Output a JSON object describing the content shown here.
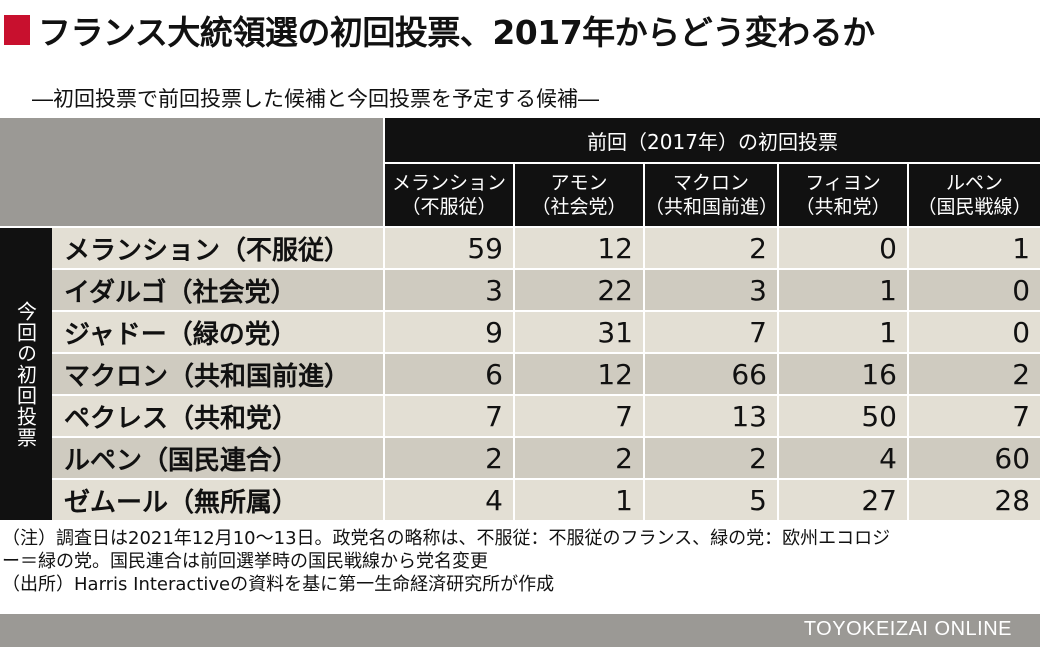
{
  "title": "フランス大統領選の初回投票、2017年からどう変わるか",
  "subtitle": "―初回投票で前回投票した候補と今回投票を予定する候補―",
  "chart_data": {
    "type": "table",
    "column_group_label": "前回（2017年）の初回投票",
    "row_group_label": "今回の初回投票",
    "columns": [
      {
        "line1": "メランション",
        "line2": "（不服従）"
      },
      {
        "line1": "アモン",
        "line2": "（社会党）"
      },
      {
        "line1": "マクロン",
        "line2": "（共和国前進）"
      },
      {
        "line1": "フィヨン",
        "line2": "（共和党）"
      },
      {
        "line1": "ルペン",
        "line2": "（国民戦線）"
      }
    ],
    "rows": [
      {
        "label": "メランション（不服従）",
        "values": [
          59,
          12,
          2,
          0,
          1
        ]
      },
      {
        "label": "イダルゴ（社会党）",
        "values": [
          3,
          22,
          3,
          1,
          0
        ]
      },
      {
        "label": "ジャドー（緑の党）",
        "values": [
          9,
          31,
          7,
          1,
          0
        ]
      },
      {
        "label": "マクロン（共和国前進）",
        "values": [
          6,
          12,
          66,
          16,
          2
        ]
      },
      {
        "label": "ペクレス（共和党）",
        "values": [
          7,
          7,
          13,
          50,
          7
        ]
      },
      {
        "label": "ルペン（国民連合）",
        "values": [
          2,
          2,
          2,
          4,
          60
        ]
      },
      {
        "label": "ゼムール（無所属）",
        "values": [
          4,
          1,
          5,
          27,
          28
        ]
      }
    ]
  },
  "notes": [
    "（注）調査日は2021年12月10～13日。政党名の略称は、不服従：不服従のフランス、緑の党：欧州エコロジ",
    "ー＝緑の党。国民連合は前回選挙時の国民戦線から党名変更",
    "（出所）Harris Interactiveの資料を基に第一生命経済研究所が作成"
  ],
  "footer": "TOYOKEIZAI ONLINE",
  "colors": {
    "accent": "#c8102e",
    "header_bg": "#111111",
    "row_light": "#e3dfd4",
    "row_dark": "#cfcbc0",
    "gray": "#9b9995"
  }
}
